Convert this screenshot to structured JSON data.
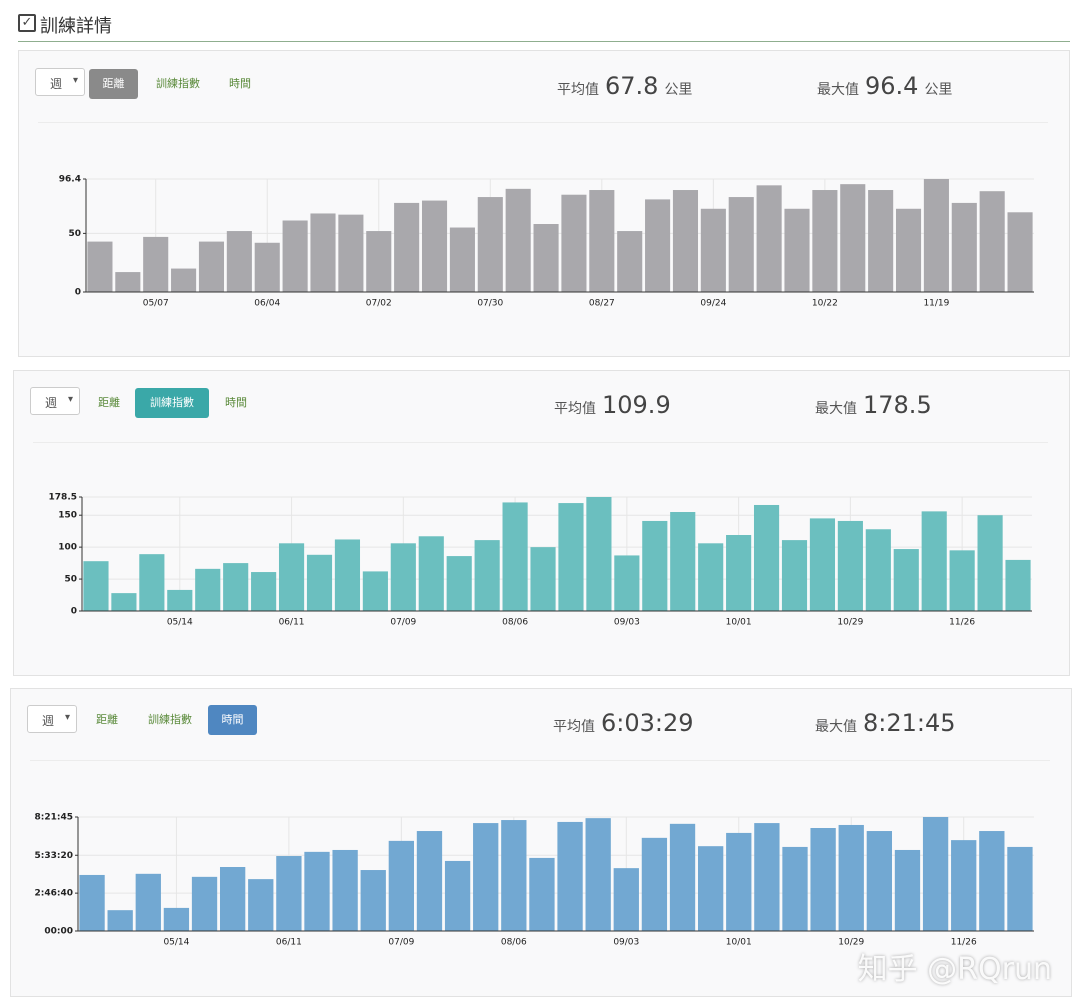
{
  "header": {
    "title": "訓練詳情"
  },
  "watermark": "知乎 @RQrun",
  "panels": [
    {
      "period": "週",
      "tabs": [
        "距離",
        "訓練指數",
        "時間"
      ],
      "active": 0,
      "active_color": "#8a8a8a",
      "avg_label": "平均值",
      "avg": "67.8",
      "avg_unit": "公里",
      "max_label": "最大值",
      "max": "96.4",
      "max_unit": "公里"
    },
    {
      "period": "週",
      "tabs": [
        "距離",
        "訓練指數",
        "時間"
      ],
      "active": 1,
      "active_color": "#3aa8a8",
      "avg_label": "平均值",
      "avg": "109.9",
      "max_label": "最大值",
      "max": "178.5"
    },
    {
      "period": "週",
      "tabs": [
        "距離",
        "訓練指數",
        "時間"
      ],
      "active": 2,
      "active_color": "#4f87c1",
      "avg_label": "平均值",
      "avg": "6:03:29",
      "max_label": "最大值",
      "max": "8:21:45"
    }
  ],
  "chart_data": [
    {
      "type": "bar",
      "color": "#a9a8ac",
      "grid": true,
      "categories": [
        null,
        null,
        "05/07",
        null,
        null,
        null,
        "06/04",
        null,
        null,
        null,
        "07/02",
        null,
        null,
        null,
        "07/30",
        null,
        null,
        null,
        "08/27",
        null,
        null,
        null,
        "09/24",
        null,
        null,
        null,
        "10/22",
        null,
        null,
        null,
        "11/19",
        null,
        null,
        null
      ],
      "values": [
        43,
        17,
        47,
        20,
        43,
        52,
        42,
        61,
        67,
        66,
        52,
        76,
        78,
        55,
        81,
        88,
        58,
        83,
        87,
        52,
        79,
        87,
        71,
        81,
        91,
        71,
        87,
        92,
        87,
        71,
        96.4,
        76,
        86,
        68
      ],
      "ylim": [
        0,
        96.4
      ],
      "yticks": [
        0,
        50,
        96.4
      ]
    },
    {
      "type": "bar",
      "color": "#6bbfbf",
      "grid": true,
      "categories": [
        null,
        null,
        null,
        "05/14",
        null,
        null,
        null,
        "06/11",
        null,
        null,
        null,
        "07/09",
        null,
        null,
        null,
        "08/06",
        null,
        null,
        null,
        "09/03",
        null,
        null,
        null,
        "10/01",
        null,
        null,
        null,
        "10/29",
        null,
        null,
        null,
        "11/26",
        null,
        null
      ],
      "values": [
        78,
        28,
        89,
        33,
        66,
        75,
        61,
        106,
        88,
        112,
        62,
        106,
        117,
        86,
        111,
        170,
        100,
        169,
        178.5,
        87,
        141,
        155,
        106,
        119,
        166,
        111,
        145,
        141,
        128,
        97,
        156,
        95,
        150,
        80
      ],
      "ylim": [
        0,
        178.5
      ],
      "yticks": [
        0,
        50,
        100,
        150,
        178.5
      ]
    },
    {
      "type": "bar",
      "color": "#72a8d2",
      "grid": true,
      "categories": [
        null,
        null,
        null,
        "05/14",
        null,
        null,
        null,
        "06/11",
        null,
        null,
        null,
        "07/09",
        null,
        null,
        null,
        "08/06",
        null,
        null,
        null,
        "09/03",
        null,
        null,
        null,
        "10/01",
        null,
        null,
        null,
        "10/29",
        null,
        null,
        null,
        "11/26",
        null,
        null
      ],
      "values": [
        14800,
        5500,
        15100,
        6100,
        14300,
        16900,
        13700,
        19800,
        20900,
        21400,
        16100,
        23800,
        26400,
        18500,
        28500,
        29300,
        19300,
        28800,
        29800,
        16600,
        24600,
        28300,
        22400,
        25900,
        28500,
        22200,
        27200,
        28000,
        26400,
        21400,
        30105,
        24000,
        26400,
        22200
      ],
      "ylim": [
        0,
        30105
      ],
      "yticks": [
        {
          "value": 0,
          "label": "00:00"
        },
        {
          "value": 10000,
          "label": "2:46:40"
        },
        {
          "value": 20000,
          "label": "5:33:20"
        },
        {
          "value": 30105,
          "label": "8:21:45"
        }
      ]
    }
  ]
}
